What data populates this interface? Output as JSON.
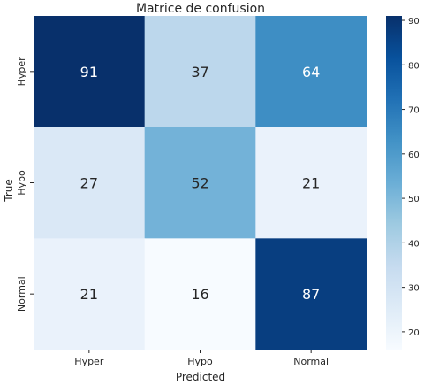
{
  "chart_data": {
    "type": "heatmap",
    "title": "Matrice de confusion",
    "xlabel": "Predicted",
    "ylabel": "True",
    "x_categories": [
      "Hyper",
      "Hypo",
      "Normal"
    ],
    "y_categories": [
      "Hyper",
      "Hypo",
      "Normal"
    ],
    "values": [
      [
        91,
        37,
        64
      ],
      [
        27,
        52,
        21
      ],
      [
        21,
        16,
        87
      ]
    ],
    "colorbar": {
      "range": [
        16,
        91
      ],
      "ticks": [
        20,
        30,
        40,
        50,
        60,
        70,
        80,
        90
      ],
      "colormap": "Blues"
    },
    "colors": {
      "low": "#f7fbff",
      "high": "#08306b",
      "text_dark": "#262626",
      "text_light": "#ffffff"
    }
  }
}
